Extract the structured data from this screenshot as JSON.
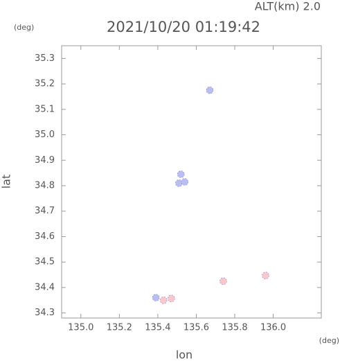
{
  "chart_data": {
    "type": "scatter",
    "title": "2021/10/20 01:19:42",
    "subtitle": "ALT(km) 2.0",
    "x_label": "lon",
    "y_label": "lat",
    "x_unit": "(deg)",
    "y_unit": "(deg)",
    "xlim": [
      134.9,
      136.25
    ],
    "ylim": [
      34.28,
      35.35
    ],
    "xticks": [
      {
        "value": 135,
        "label": "135.0"
      },
      135.2,
      135.4,
      135.6,
      135.8,
      {
        "value": 136,
        "label": "136.0"
      }
    ],
    "yticks": [
      34.3,
      34.4,
      34.5,
      34.6,
      34.7,
      34.8,
      34.9,
      {
        "value": 35,
        "label": "35.0"
      },
      35.1,
      35.2,
      35.3
    ],
    "series": [
      {
        "color": "#b8bff0",
        "x": [
          135.67,
          135.52,
          135.51,
          135.54,
          135.39
        ],
        "values": [
          35.175,
          34.845,
          34.81,
          34.815,
          34.36
        ]
      },
      {
        "color": "#f8c8cc",
        "x": [
          135.43,
          135.47,
          135.74,
          135.96
        ],
        "values": [
          34.35,
          34.357,
          34.425,
          34.447
        ]
      }
    ]
  }
}
